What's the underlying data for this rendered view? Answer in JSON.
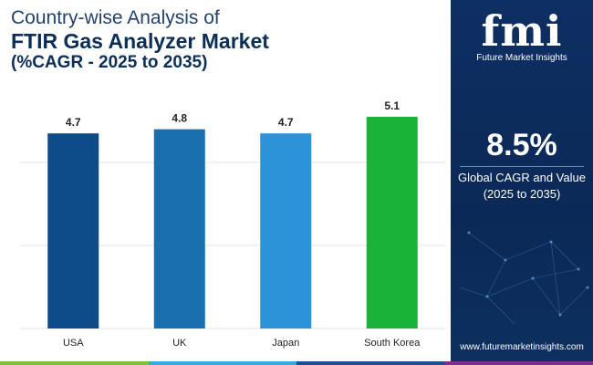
{
  "title": {
    "line1": "Country-wise Analysis of",
    "line2": "FTIR Gas Analyzer Market",
    "line3": "(%CAGR - 2025 to 2035)"
  },
  "chart_data": {
    "type": "bar",
    "categories": [
      "USA",
      "UK",
      "Japan",
      "South Korea"
    ],
    "values": [
      4.7,
      4.8,
      4.7,
      5.1
    ],
    "data_labels": [
      "4.7",
      "4.8",
      "4.7",
      "5.1"
    ],
    "ylim": [
      0,
      5.1
    ],
    "grid": true,
    "legend": "none",
    "bar_colors": [
      "#0d4c86",
      "#1a6fae",
      "#2d93d8",
      "#19b33a"
    ]
  },
  "side_panel": {
    "logo_text": "fmi",
    "logo_subtitle": "Future Market Insights",
    "cagr_value": "8.5%",
    "cagr_label_line1": "Global CAGR and Value",
    "cagr_label_line2": "(2025 to 2035)",
    "website": "www.futuremarketinsights.com",
    "background_color": "#0e2f63"
  },
  "bottom_strip_colors": [
    "#7fc241",
    "#39a9dc",
    "#1b4f8e",
    "#7b2f8f"
  ]
}
